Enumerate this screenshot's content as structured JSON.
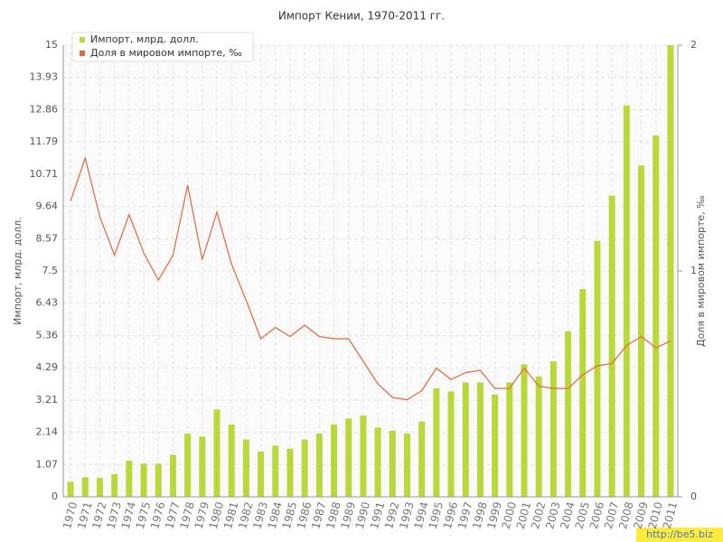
{
  "chart_data": {
    "type": "bar-line",
    "title": "Импорт Кении, 1970-2011 гг.",
    "y_label": "Импорт, млрд. долл.",
    "y2_label": "Доля в мировом импорте, ‰",
    "categories": [
      "1970",
      "1971",
      "1972",
      "1973",
      "1974",
      "1975",
      "1976",
      "1977",
      "1978",
      "1979",
      "1980",
      "1981",
      "1982",
      "1983",
      "1984",
      "1985",
      "1986",
      "1987",
      "1988",
      "1989",
      "1990",
      "1991",
      "1992",
      "1993",
      "1994",
      "1995",
      "1996",
      "1997",
      "1998",
      "1999",
      "2000",
      "2001",
      "2002",
      "2003",
      "2004",
      "2005",
      "2006",
      "2007",
      "2008",
      "2009",
      "2010",
      "2011"
    ],
    "series": [
      {
        "name": "Импорт, млрд. долл.",
        "color": "#b9d83a",
        "type": "bar",
        "values": [
          0.5,
          0.65,
          0.63,
          0.75,
          1.2,
          1.1,
          1.1,
          1.4,
          2.1,
          2.0,
          2.9,
          2.4,
          1.9,
          1.5,
          1.7,
          1.6,
          1.9,
          2.1,
          2.4,
          2.6,
          2.7,
          2.3,
          2.2,
          2.1,
          2.5,
          3.6,
          3.5,
          3.8,
          3.8,
          3.4,
          3.8,
          4.4,
          4.0,
          4.5,
          5.5,
          6.9,
          8.5,
          10.0,
          13.0,
          11.0,
          12.0,
          15.0
        ]
      },
      {
        "name": "Доля в мировом импорте, ‰",
        "color": "#e0683c",
        "type": "line",
        "axis": "y2",
        "values": [
          1.31,
          1.5,
          1.24,
          1.07,
          1.25,
          1.08,
          0.96,
          1.07,
          1.38,
          1.05,
          1.26,
          1.03,
          0.87,
          0.7,
          0.75,
          0.71,
          0.76,
          0.71,
          0.7,
          0.7,
          0.6,
          0.5,
          0.44,
          0.43,
          0.47,
          0.57,
          0.52,
          0.55,
          0.56,
          0.48,
          0.48,
          0.57,
          0.49,
          0.48,
          0.48,
          0.54,
          0.58,
          0.59,
          0.67,
          0.71,
          0.66,
          0.69
        ]
      }
    ],
    "ylim": [
      0,
      15
    ],
    "yticks": [
      0,
      1.07,
      2.14,
      3.21,
      4.29,
      5.36,
      6.43,
      7.5,
      8.57,
      9.64,
      10.71,
      11.79,
      12.86,
      13.93,
      15
    ],
    "y2lim": [
      0,
      2
    ],
    "y2ticks": [
      0,
      1,
      2
    ],
    "grid": true,
    "legend": "top-left"
  },
  "watermark": "http://be5.biz"
}
